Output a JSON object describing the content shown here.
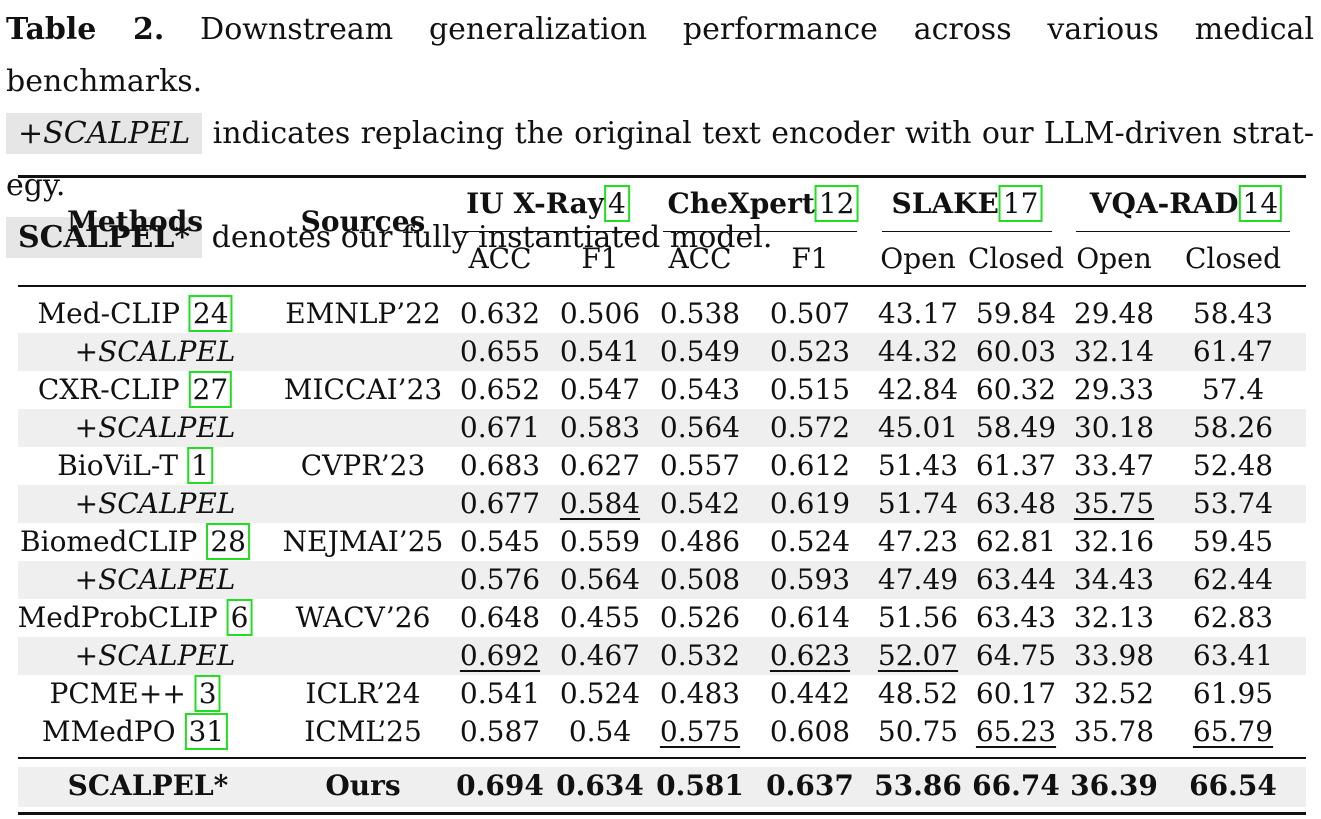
{
  "caption": {
    "label": "Table 2.",
    "text1": " Downstream generalization performance across various medical benchmarks.",
    "scalpel_tag": "+SCALPEL",
    "text2": " indicates replacing the original text encoder with our LLM-driven strat-egy.",
    "model_tag": "SCALPEL*",
    "text3": " denotes our fully instantiated model."
  },
  "table": {
    "header": {
      "methods": "Methods",
      "sources": "Sources",
      "groups": [
        {
          "name": "IU X-Ray",
          "cite": "4"
        },
        {
          "name": "CheXpert",
          "cite": "12"
        },
        {
          "name": "SLAKE",
          "cite": "17"
        },
        {
          "name": "VQA-RAD",
          "cite": "14"
        }
      ],
      "subcols": [
        "ACC",
        "F1",
        "ACC",
        "F1",
        "Open",
        "Closed",
        "Open",
        "Closed"
      ]
    },
    "rows": [
      {
        "method": "Med-CLIP",
        "cite": "24",
        "source": "EMNLP’22",
        "values": [
          "0.632",
          "0.506",
          "0.538",
          "0.507",
          "43.17",
          "59.84",
          "29.48",
          "58.43"
        ],
        "underline": []
      },
      {
        "method": "+SCALPEL",
        "italic": true,
        "shaded": true,
        "source": "",
        "values": [
          "0.655",
          "0.541",
          "0.549",
          "0.523",
          "44.32",
          "60.03",
          "32.14",
          "61.47"
        ],
        "underline": []
      },
      {
        "method": "CXR-CLIP",
        "cite": "27",
        "source": "MICCAI’23",
        "values": [
          "0.652",
          "0.547",
          "0.543",
          "0.515",
          "42.84",
          "60.32",
          "29.33",
          "57.4"
        ],
        "underline": []
      },
      {
        "method": "+SCALPEL",
        "italic": true,
        "shaded": true,
        "source": "",
        "values": [
          "0.671",
          "0.583",
          "0.564",
          "0.572",
          "45.01",
          "58.49",
          "30.18",
          "58.26"
        ],
        "underline": []
      },
      {
        "method": "BioViL-T",
        "cite": "1",
        "source": "CVPR’23",
        "values": [
          "0.683",
          "0.627",
          "0.557",
          "0.612",
          "51.43",
          "61.37",
          "33.47",
          "52.48"
        ],
        "underline": []
      },
      {
        "method": "+SCALPEL",
        "italic": true,
        "shaded": true,
        "source": "",
        "values": [
          "0.677",
          "0.584",
          "0.542",
          "0.619",
          "51.74",
          "63.48",
          "35.75",
          "53.74"
        ],
        "underline": [
          1,
          6
        ]
      },
      {
        "method": "BiomedCLIP",
        "cite": "28",
        "source": "NEJMAI’25",
        "values": [
          "0.545",
          "0.559",
          "0.486",
          "0.524",
          "47.23",
          "62.81",
          "32.16",
          "59.45"
        ],
        "underline": []
      },
      {
        "method": "+SCALPEL",
        "italic": true,
        "shaded": true,
        "source": "",
        "values": [
          "0.576",
          "0.564",
          "0.508",
          "0.593",
          "47.49",
          "63.44",
          "34.43",
          "62.44"
        ],
        "underline": []
      },
      {
        "method": "MedProbCLIP",
        "cite": "6",
        "source": "WACV’26",
        "values": [
          "0.648",
          "0.455",
          "0.526",
          "0.614",
          "51.56",
          "63.43",
          "32.13",
          "62.83"
        ],
        "underline": []
      },
      {
        "method": "+SCALPEL",
        "italic": true,
        "shaded": true,
        "source": "",
        "values": [
          "0.692",
          "0.467",
          "0.532",
          "0.623",
          "52.07",
          "64.75",
          "33.98",
          "63.41"
        ],
        "underline": [
          0,
          3,
          4
        ]
      },
      {
        "method": "PCME++",
        "cite": "3",
        "source": "ICLR’24",
        "values": [
          "0.541",
          "0.524",
          "0.483",
          "0.442",
          "48.52",
          "60.17",
          "32.52",
          "61.95"
        ],
        "underline": []
      },
      {
        "method": "MMedPO",
        "cite": "31",
        "source": "ICML’25",
        "values": [
          "0.587",
          "0.54",
          "0.575",
          "0.608",
          "50.75",
          "65.23",
          "35.78",
          "65.79"
        ],
        "underline": [
          2,
          5,
          7
        ]
      }
    ],
    "final": {
      "method": "SCALPEL*",
      "source": "Ours",
      "values": [
        "0.694",
        "0.634",
        "0.581",
        "0.637",
        "53.86",
        "66.74",
        "36.39",
        "66.54"
      ]
    }
  }
}
